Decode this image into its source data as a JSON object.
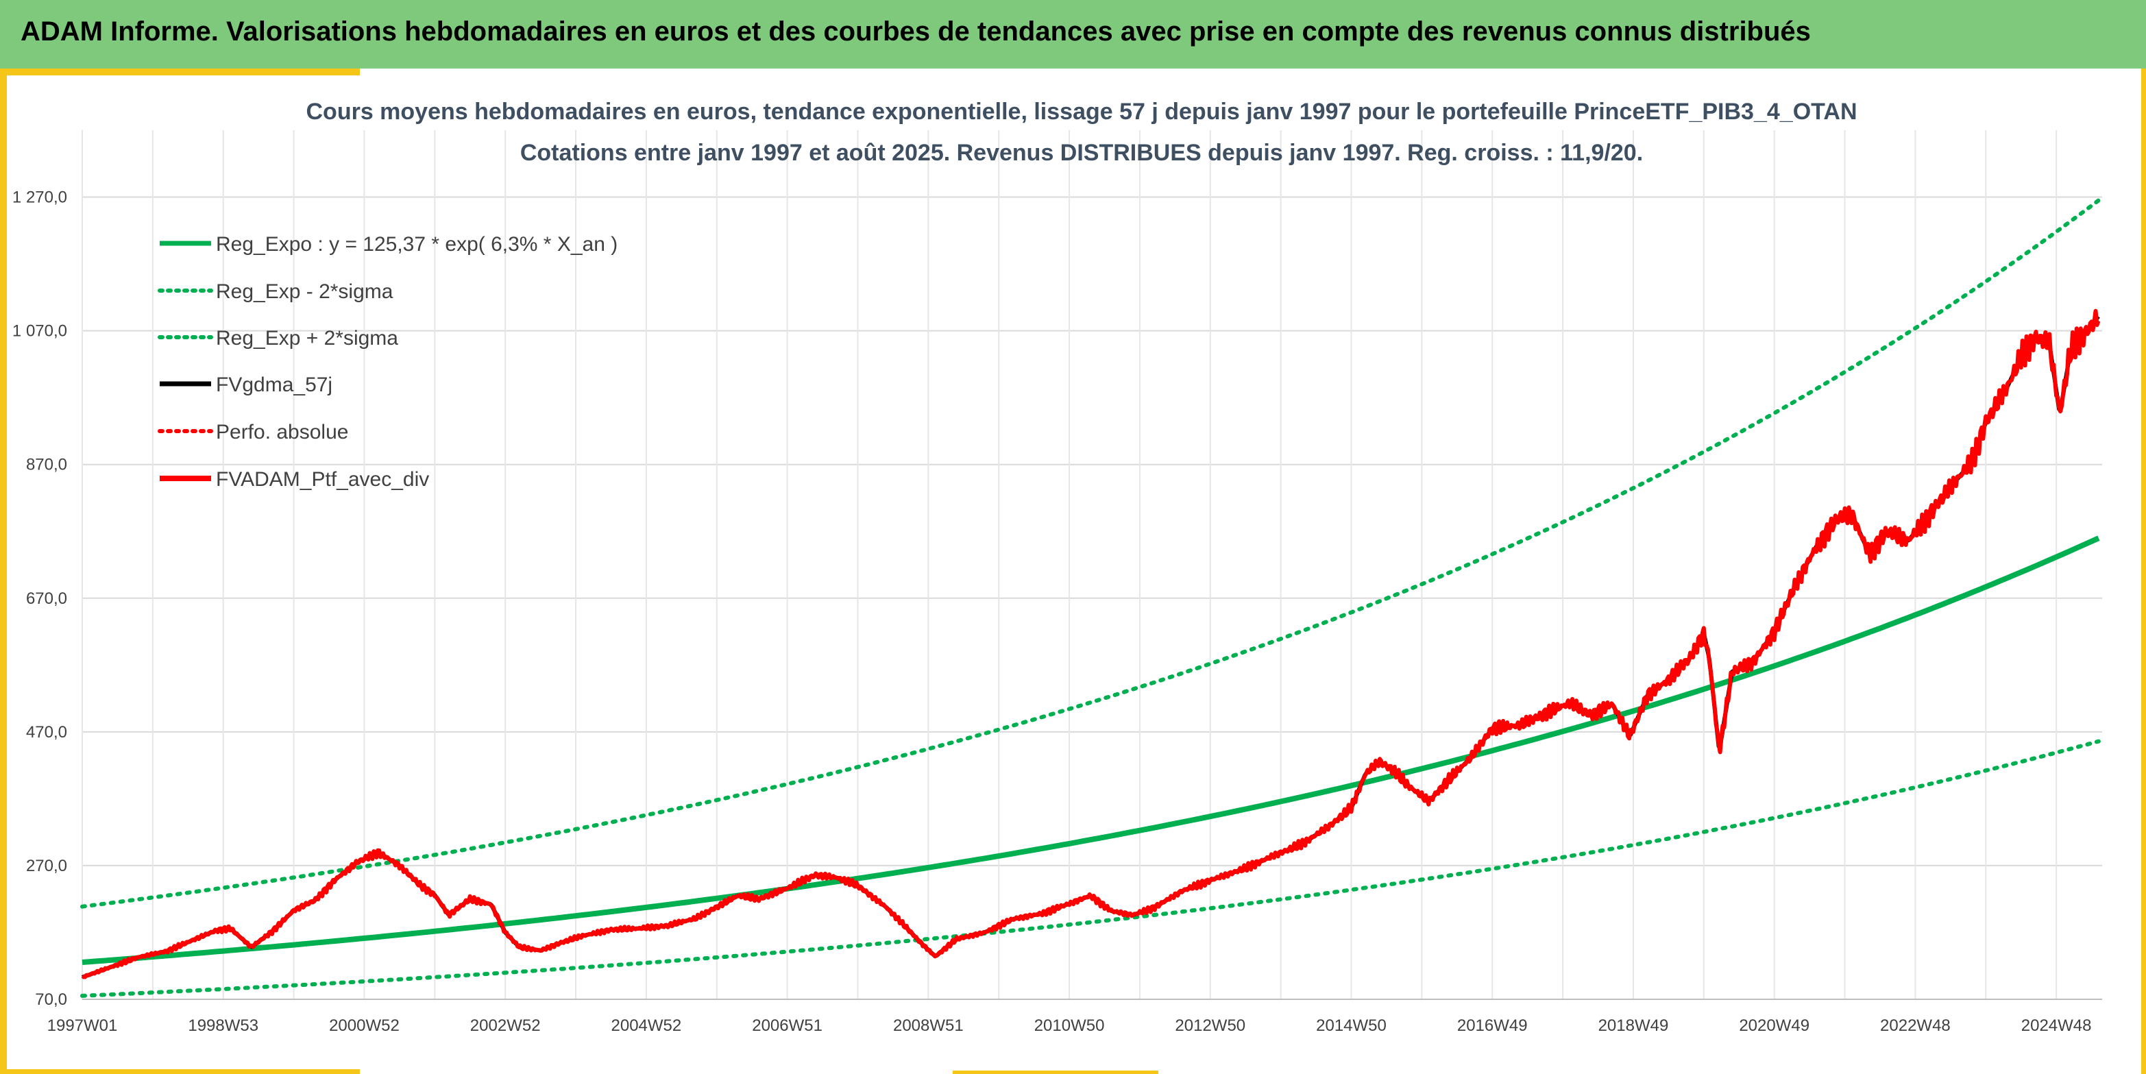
{
  "header": {
    "title": "ADAM Informe. Valorisations hebdomadaires en euros et des courbes de tendances avec prise en compte des revenus connus distribués"
  },
  "colors": {
    "header_bg": "#7ec97c",
    "frame": "#f5c518",
    "trend": "#00b050",
    "smoothed": "#000000",
    "portfolio": "#ff0000"
  },
  "chart_data": {
    "type": "line",
    "title": "Cours moyens hebdomadaires en euros, tendance exponentielle, lissage 57 j depuis janv 1997 pour le portefeuille PrinceETF_PIB3_4_OTAN",
    "subtitle": "Cotations entre janv 1997 et août 2025. Revenus DISTRIBUES depuis janv 1997. Reg. croiss. : 11,9/20.",
    "x_range": [
      1997.0,
      2025.65
    ],
    "y_range": [
      70,
      1370
    ],
    "y_ticks": [
      70,
      270,
      470,
      670,
      870,
      1070,
      1270
    ],
    "y_tick_labels": [
      "70,0",
      "270,0",
      "470,0",
      "670,0",
      "870,0",
      "1 070,0",
      "1 270,0"
    ],
    "x_ticks": [
      1997.0,
      1999.0,
      2001.0,
      2003.0,
      2005.0,
      2007.0,
      2009.0,
      2011.0,
      2013.0,
      2015.0,
      2017.0,
      2019.0,
      2021.0,
      2023.0,
      2025.0
    ],
    "x_tick_labels": [
      "1997W01",
      "1998W53",
      "2000W52",
      "2002W52",
      "2004W52",
      "2006W51",
      "2008W51",
      "2010W50",
      "2012W50",
      "2014W50",
      "2016W49",
      "2018W49",
      "2020W49",
      "2022W48",
      "2024W48"
    ],
    "grid": true,
    "legend_position": "top-left",
    "series": [
      {
        "name": "Reg_Expo : y = 125,37 * exp( 6,3% *  X_an )",
        "style": "solid",
        "color": "#00b050",
        "formula": {
          "a": 125.37,
          "b": 0.063,
          "factor": 1.0
        }
      },
      {
        "name": "Reg_Exp - 2*sigma",
        "style": "dotted",
        "color": "#00b050",
        "formula": {
          "a": 125.37,
          "b": 0.063,
          "factor": 0.6
        }
      },
      {
        "name": "Reg_Exp + 2*sigma",
        "style": "dotted",
        "color": "#00b050",
        "formula": {
          "a": 125.37,
          "b": 0.063,
          "factor": 1.665
        }
      },
      {
        "name": "FVgdma_57j",
        "style": "solid",
        "color": "#000000"
      },
      {
        "name": "Perfo. absolue",
        "style": "dotted",
        "color": "#ff0000"
      },
      {
        "name": "FVADAM_Ptf_avec_div",
        "style": "solid",
        "color": "#ff0000"
      }
    ],
    "portfolio_points": [
      [
        1997.0,
        103
      ],
      [
        1997.4,
        118
      ],
      [
        1997.8,
        133
      ],
      [
        1998.2,
        142
      ],
      [
        1998.6,
        160
      ],
      [
        1998.9,
        173
      ],
      [
        1999.1,
        176
      ],
      [
        1999.4,
        148
      ],
      [
        1999.7,
        172
      ],
      [
        2000.0,
        203
      ],
      [
        2000.3,
        218
      ],
      [
        2000.6,
        250
      ],
      [
        2000.9,
        275
      ],
      [
        2001.2,
        290
      ],
      [
        2001.5,
        270
      ],
      [
        2001.8,
        240
      ],
      [
        2002.0,
        226
      ],
      [
        2002.2,
        196
      ],
      [
        2002.5,
        220
      ],
      [
        2002.8,
        212
      ],
      [
        2003.0,
        170
      ],
      [
        2003.2,
        148
      ],
      [
        2003.5,
        143
      ],
      [
        2003.8,
        155
      ],
      [
        2004.1,
        165
      ],
      [
        2004.5,
        174
      ],
      [
        2004.9,
        176
      ],
      [
        2005.3,
        180
      ],
      [
        2005.7,
        191
      ],
      [
        2006.0,
        208
      ],
      [
        2006.3,
        225
      ],
      [
        2006.6,
        220
      ],
      [
        2007.0,
        236
      ],
      [
        2007.4,
        256
      ],
      [
        2007.7,
        252
      ],
      [
        2008.0,
        240
      ],
      [
        2008.4,
        208
      ],
      [
        2008.7,
        176
      ],
      [
        2008.9,
        154
      ],
      [
        2009.1,
        134
      ],
      [
        2009.4,
        160
      ],
      [
        2009.8,
        170
      ],
      [
        2010.2,
        190
      ],
      [
        2010.6,
        198
      ],
      [
        2011.0,
        213
      ],
      [
        2011.3,
        225
      ],
      [
        2011.6,
        202
      ],
      [
        2011.9,
        196
      ],
      [
        2012.2,
        207
      ],
      [
        2012.6,
        232
      ],
      [
        2013.0,
        248
      ],
      [
        2013.5,
        266
      ],
      [
        2013.9,
        285
      ],
      [
        2014.3,
        302
      ],
      [
        2014.7,
        330
      ],
      [
        2015.0,
        356
      ],
      [
        2015.2,
        407
      ],
      [
        2015.4,
        426
      ],
      [
        2015.6,
        412
      ],
      [
        2015.8,
        390
      ],
      [
        2016.1,
        366
      ],
      [
        2016.4,
        400
      ],
      [
        2016.7,
        432
      ],
      [
        2017.0,
        475
      ],
      [
        2017.4,
        480
      ],
      [
        2017.8,
        500
      ],
      [
        2018.1,
        513
      ],
      [
        2018.4,
        495
      ],
      [
        2018.7,
        512
      ],
      [
        2018.95,
        463
      ],
      [
        2019.2,
        525
      ],
      [
        2019.5,
        548
      ],
      [
        2019.8,
        580
      ],
      [
        2020.0,
        618
      ],
      [
        2020.08,
        578
      ],
      [
        2020.22,
        440
      ],
      [
        2020.4,
        560
      ],
      [
        2020.7,
        575
      ],
      [
        2021.0,
        620
      ],
      [
        2021.3,
        690
      ],
      [
        2021.6,
        748
      ],
      [
        2021.9,
        790
      ],
      [
        2022.1,
        795
      ],
      [
        2022.35,
        736
      ],
      [
        2022.6,
        770
      ],
      [
        2022.9,
        756
      ],
      [
        2023.2,
        795
      ],
      [
        2023.5,
        836
      ],
      [
        2023.8,
        874
      ],
      [
        2024.0,
        933
      ],
      [
        2024.3,
        985
      ],
      [
        2024.5,
        1030
      ],
      [
        2024.7,
        1060
      ],
      [
        2024.9,
        1052
      ],
      [
        2025.05,
        945
      ],
      [
        2025.2,
        1040
      ],
      [
        2025.4,
        1065
      ],
      [
        2025.6,
        1092
      ]
    ]
  },
  "legend": {
    "reg_expo": "Reg_Expo : y = 125,37 * exp( 6,3% *  X_an )",
    "reg_minus": "Reg_Exp - 2*sigma",
    "reg_plus": "Reg_Exp + 2*sigma",
    "fvgdma": "FVgdma_57j",
    "perfo": "Perfo. absolue",
    "fvadam": "FVADAM_Ptf_avec_div"
  }
}
